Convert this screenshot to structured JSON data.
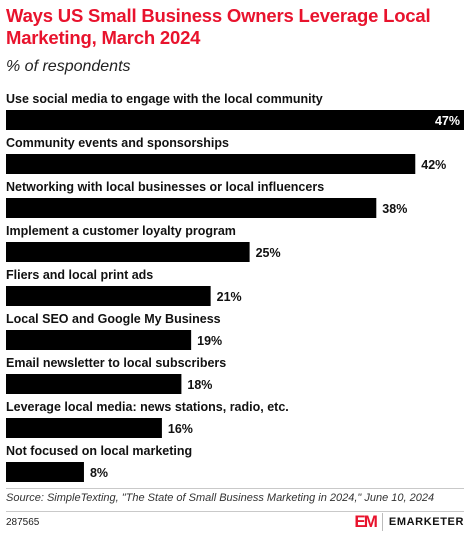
{
  "header": {
    "title": "Ways US Small Business Owners Leverage Local Marketing, March 2024",
    "subtitle": "% of respondents"
  },
  "chart_data": {
    "type": "bar",
    "orientation": "horizontal",
    "categories": [
      "Use social media to engage with the local community",
      "Community events and sponsorships",
      "Networking with local businesses or local influencers",
      "Implement a customer loyalty program",
      "Fliers and local print ads",
      "Local SEO and Google My Business",
      "Email newsletter to local subscribers",
      "Leverage local media: news stations, radio, etc.",
      "Not focused on local marketing"
    ],
    "values": [
      47,
      42,
      38,
      25,
      21,
      19,
      18,
      16,
      8
    ],
    "value_labels": [
      "47%",
      "42%",
      "38%",
      "25%",
      "21%",
      "19%",
      "18%",
      "16%",
      "8%"
    ],
    "xlim": [
      0,
      47
    ],
    "bar_color": "#000000",
    "grid": false,
    "legend": "none"
  },
  "footer": {
    "source": "Source: SimpleTexting, \"The State of Small Business Marketing in 2024,\" June 10, 2024",
    "chart_id": "287565",
    "brand_mark": "EM",
    "brand_name": "EMARKETER",
    "accent_color": "#e8132d"
  }
}
